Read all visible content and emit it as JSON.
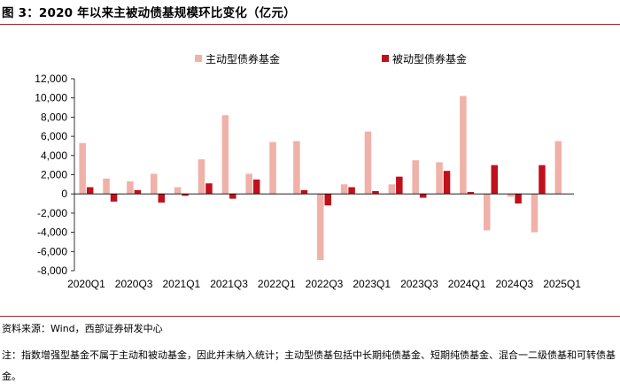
{
  "title": "图 3：2020 年以来主被动债基规模环比变化（亿元）",
  "source": "资料来源：Wind，西部证券研发中心",
  "note": "注：指数增强型基金不属于主动和被动基金，因此并未纳入统计；主动型债基包括中长期纯债基金、短期纯债基金、混合一二级债基和可转债基金。",
  "chart_data": {
    "type": "bar",
    "title": "图 3：2020 年以来主被动债基规模环比变化（亿元）",
    "xlabel": "",
    "ylabel": "",
    "ylim": [
      -8000,
      12000
    ],
    "yticks": [
      12000,
      10000,
      8000,
      6000,
      4000,
      2000,
      0,
      -2000,
      -4000,
      -6000,
      -8000
    ],
    "ytick_labels": [
      "12,000",
      "10,000",
      "8,000",
      "6,000",
      "4,000",
      "2,000",
      "0",
      "-2,000",
      "-4,000",
      "-6,000",
      "-8,000"
    ],
    "grid": false,
    "legend_position": "top-center",
    "categories": [
      "2020Q1",
      "2020Q2",
      "2020Q3",
      "2020Q4",
      "2021Q1",
      "2021Q2",
      "2021Q3",
      "2021Q4",
      "2022Q1",
      "2022Q2",
      "2022Q3",
      "2022Q4",
      "2023Q1",
      "2023Q2",
      "2023Q3",
      "2023Q4",
      "2024Q1",
      "2024Q2",
      "2024Q3",
      "2024Q4",
      "2025Q1"
    ],
    "xtick_labels": [
      "2020Q1",
      "",
      "2020Q3",
      "",
      "2021Q1",
      "",
      "2021Q3",
      "",
      "2022Q1",
      "",
      "2022Q3",
      "",
      "2023Q1",
      "",
      "2023Q3",
      "",
      "2024Q1",
      "",
      "2024Q3",
      "",
      "2025Q1"
    ],
    "series": [
      {
        "name": "主动型债券基金",
        "color": "#f0b1a8",
        "values": [
          5300,
          1600,
          1300,
          2100,
          700,
          3600,
          8200,
          2100,
          5400,
          5500,
          -6900,
          1000,
          6500,
          1000,
          3500,
          3300,
          10200,
          -3800,
          -300,
          -4000,
          5500
        ]
      },
      {
        "name": "被动型债券基金",
        "color": "#c0101c",
        "values": [
          700,
          -800,
          400,
          -900,
          -200,
          1100,
          -500,
          1500,
          0,
          400,
          -1200,
          700,
          300,
          1800,
          -400,
          2400,
          200,
          3000,
          -1000,
          3000,
          0
        ]
      }
    ]
  }
}
